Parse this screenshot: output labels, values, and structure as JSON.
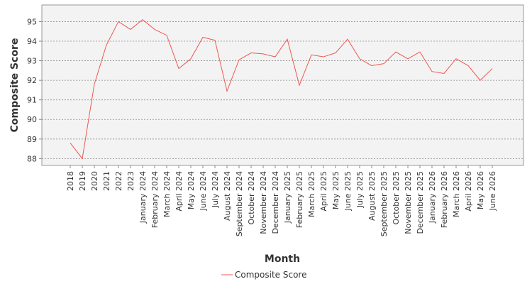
{
  "chart_data": {
    "type": "line",
    "title": "",
    "xlabel": "Month",
    "ylabel": "Composite Score",
    "ylim": [
      87.65,
      95.85
    ],
    "yticks": [
      88,
      89,
      90,
      91,
      92,
      93,
      94,
      95
    ],
    "grid": true,
    "legend_position": "bottom-center",
    "categories": [
      "2018",
      "2019",
      "2020",
      "2021",
      "2022",
      "2023",
      "January 2024",
      "February 2024",
      "March 2024",
      "April 2024",
      "May 2024",
      "June 2024",
      "July 2024",
      "August 2024",
      "September 2024",
      "October 2024",
      "November 2024",
      "December 2024",
      "January 2025",
      "February 2025",
      "March 2025",
      "April 2025",
      "May 2025",
      "June 2025",
      "July 2025",
      "August 2025",
      "September 2025",
      "October 2025",
      "November 2025",
      "December 2025",
      "January 2026",
      "February 2026",
      "March 2026",
      "April 2026",
      "May 2026",
      "June 2026"
    ],
    "series": [
      {
        "name": "Composite Score",
        "color": "#f0574f",
        "values": [
          88.8,
          88.0,
          91.8,
          93.8,
          95.0,
          94.6,
          95.1,
          94.6,
          94.3,
          92.6,
          93.1,
          94.2,
          94.05,
          91.45,
          93.05,
          93.4,
          93.35,
          93.2,
          94.1,
          91.75,
          93.3,
          93.2,
          93.4,
          94.1,
          93.1,
          92.75,
          92.85,
          93.45,
          93.1,
          93.45,
          92.45,
          92.35,
          93.1,
          92.75,
          92.0,
          92.6
        ]
      }
    ]
  }
}
